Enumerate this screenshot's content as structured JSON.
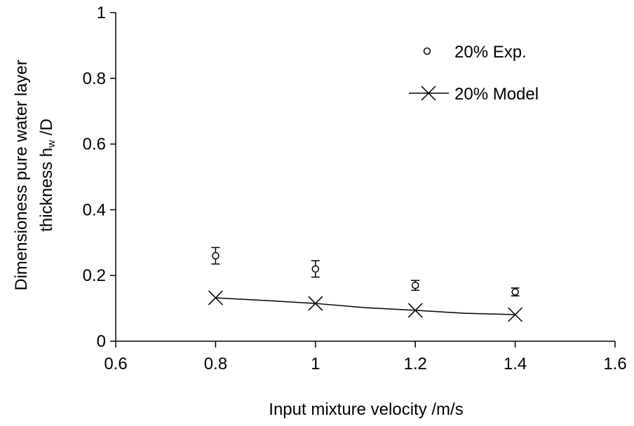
{
  "chart_data": {
    "type": "scatter",
    "title": "",
    "xlabel": "Input mixture velocity    /m/s",
    "ylabel_line1": "Dimensioness pure water layer",
    "ylabel_line2_main": "thickness h",
    "ylabel_line2_sub": "w",
    "ylabel_line2_tail": " /D",
    "xlim": [
      0.6,
      1.6
    ],
    "ylim": [
      0,
      1
    ],
    "x_ticks": [
      "0.6",
      "0.8",
      "1",
      "1.2",
      "1.4",
      "1.6"
    ],
    "y_ticks": [
      "0",
      "0.2",
      "0.4",
      "0.6",
      "0.8",
      "1"
    ],
    "grid": false,
    "legend_position": "top-right",
    "series": [
      {
        "name": "20% Exp.",
        "kind": "points-with-errorbars",
        "marker": "open-circle",
        "x": [
          0.8,
          1.0,
          1.2,
          1.4
        ],
        "y": [
          0.26,
          0.22,
          0.17,
          0.15
        ],
        "err": [
          0.025,
          0.025,
          0.015,
          0.012
        ]
      },
      {
        "name": "20% Model",
        "kind": "line-with-x-markers",
        "marker": "x",
        "x": [
          0.8,
          0.9,
          1.0,
          1.1,
          1.2,
          1.3,
          1.4
        ],
        "y": [
          0.132,
          0.124,
          0.115,
          0.102,
          0.094,
          0.085,
          0.081
        ],
        "marker_x": [
          0.8,
          1.0,
          1.2,
          1.4
        ],
        "marker_y": [
          0.132,
          0.115,
          0.094,
          0.081
        ]
      }
    ]
  }
}
